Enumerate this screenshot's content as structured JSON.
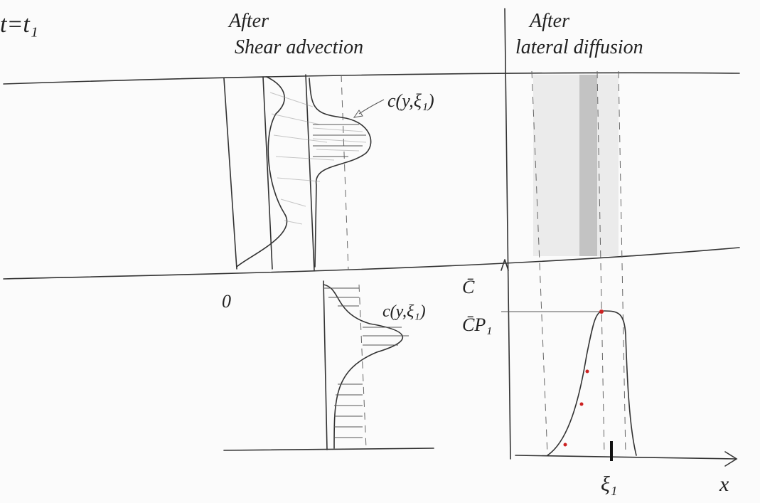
{
  "labels": {
    "time": "t=t₁",
    "left_heading_1": "After",
    "left_heading_2": "Shear advection",
    "right_heading_1": "After",
    "right_heading_2": "lateral diffusion",
    "upper_profile": "c(y,ξ₁)",
    "origin": "0",
    "lower_profile": "c(y,ξ₁)",
    "c_bar": "C̄",
    "c_bar_peak": "C̄P₁",
    "xi": "ξ₁",
    "x_axis": "x"
  }
}
